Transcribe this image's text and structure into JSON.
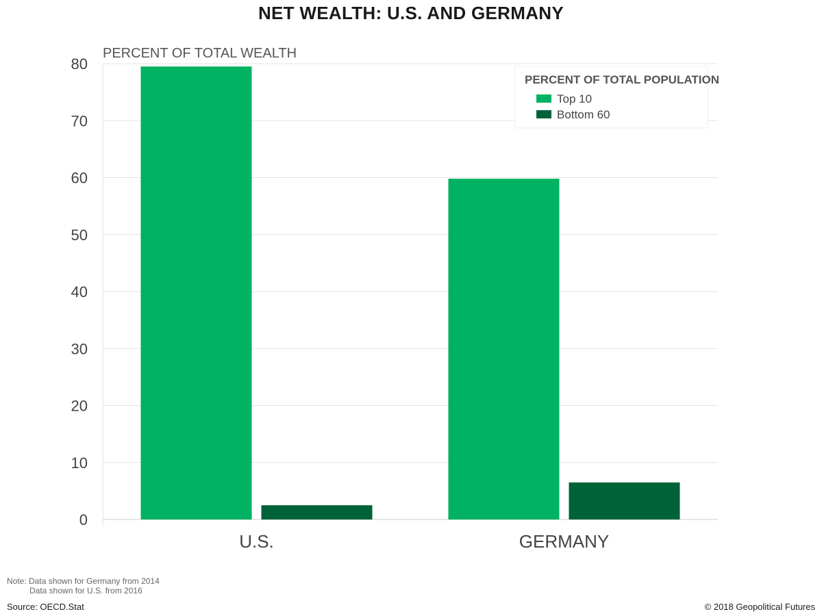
{
  "chart_data": {
    "type": "bar",
    "title": "NET WEALTH: U.S. AND GERMANY",
    "ylabel": "PERCENT OF TOTAL WEALTH",
    "xlabel": "",
    "categories": [
      "U.S.",
      "GERMANY"
    ],
    "series": [
      {
        "name": "Top 10",
        "values": [
          79.5,
          59.8
        ],
        "color": "#00b262"
      },
      {
        "name": "Bottom 60",
        "values": [
          2.5,
          6.5
        ],
        "color": "#006238"
      }
    ],
    "ylim": [
      0,
      80
    ],
    "yticks": [
      0,
      10,
      20,
      30,
      40,
      50,
      60,
      70,
      80
    ],
    "grid": true,
    "legend": {
      "title": "PERCENT OF TOTAL POPULATION",
      "position": "top-right"
    }
  },
  "notes": {
    "line1": "Note:  Data shown for Germany from 2014",
    "line2": "Data shown for U.S. from 2016"
  },
  "source": "Source: OECD.Stat",
  "copyright": "© 2018 Geopolitical Futures"
}
